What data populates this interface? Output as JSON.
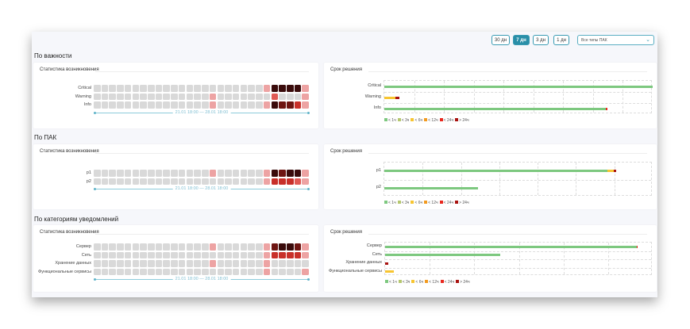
{
  "toolbar": {
    "periods": [
      {
        "label": "30 дн",
        "active": false
      },
      {
        "label": "7 дн",
        "active": true
      },
      {
        "label": "3 дн",
        "active": false
      },
      {
        "label": "1 дн",
        "active": false
      }
    ],
    "type_select": "Все типы ПАК"
  },
  "colors": {
    "heat": [
      "#d9d9d9",
      "#eda3a3",
      "#e05a55",
      "#c8302a",
      "#6e1512",
      "#3a0b0b"
    ],
    "legend": [
      "#7dc87f",
      "#b5c76e",
      "#f7c531",
      "#f29a1f",
      "#e8281e",
      "#a8120f"
    ]
  },
  "legend": [
    "< 1ч",
    "< 3ч",
    "< 6ч",
    "< 12ч",
    "< 24ч",
    "> 24ч"
  ],
  "timeline": "21.01 18:00 — 28.01 18:00",
  "occurrence_title": "Статистика возникновения",
  "resolution_title": "Срок решения",
  "sections": [
    {
      "title": "По важности",
      "grid_cols": 9,
      "heat": [
        {
          "label": "Critical",
          "cells": {
            "22": 1,
            "23": 5,
            "24": 5,
            "25": 5,
            "26": 5,
            "27": 1
          }
        },
        {
          "label": "Warning",
          "cells": {
            "15": 1,
            "23": 2,
            "27": 1
          }
        },
        {
          "label": "Info",
          "cells": {
            "15": 1,
            "22": 1,
            "23": 5,
            "24": 4,
            "25": 4,
            "26": 3,
            "27": 1
          }
        }
      ],
      "bars": [
        {
          "label": "Critical",
          "segments": [
            [
              0,
              1.0
            ]
          ]
        },
        {
          "label": "Warning",
          "segments": [
            [
              2,
              0.04
            ],
            [
              5,
              0.015
            ]
          ]
        },
        {
          "label": "Info",
          "segments": [
            [
              0,
              0.826
            ],
            [
              4,
              0.003
            ]
          ]
        }
      ]
    },
    {
      "title": "По ПАК",
      "grid_cols": 7,
      "heat": [
        {
          "label": "p1",
          "cells": {
            "15": 1,
            "22": 1,
            "23": 5,
            "24": 4,
            "25": 5,
            "26": 5,
            "27": 1
          }
        },
        {
          "label": "p2",
          "cells": {
            "22": 1,
            "23": 3,
            "24": 3,
            "25": 3,
            "26": 2,
            "27": 1
          }
        }
      ],
      "bars": [
        {
          "label": "p1",
          "segments": [
            [
              0,
              0.83
            ],
            [
              2,
              0.025
            ],
            [
              5,
              0.01
            ]
          ]
        },
        {
          "label": "p2",
          "segments": [
            [
              0,
              0.348
            ]
          ]
        }
      ]
    },
    {
      "title": "По категориям уведомлений",
      "grid_cols": 6,
      "heat": [
        {
          "label": "Сервер",
          "cells": {
            "15": 1,
            "22": 1,
            "23": 4,
            "24": 5,
            "25": 5,
            "26": 4,
            "27": 1
          }
        },
        {
          "label": "Сеть",
          "cells": {
            "22": 1,
            "23": 3,
            "24": 3,
            "25": 3,
            "26": 3,
            "27": 1
          }
        },
        {
          "label": "Хранение данных",
          "cells": {
            "15": 1,
            "22": 1
          }
        },
        {
          "label": "Функциональные сервисы",
          "cells": {
            "22": 1,
            "27": 1
          }
        }
      ],
      "bars": [
        {
          "label": "Сервер",
          "segments": [
            [
              0,
              0.94
            ],
            [
              4,
              0.003
            ]
          ]
        },
        {
          "label": "Сеть",
          "segments": [
            [
              0,
              0.43
            ]
          ]
        },
        {
          "label": "Хранение данных",
          "segments": [
            [
              5,
              0.012
            ]
          ]
        },
        {
          "label": "Функциональные сервисы",
          "segments": [
            [
              2,
              0.032
            ]
          ]
        }
      ]
    }
  ]
}
